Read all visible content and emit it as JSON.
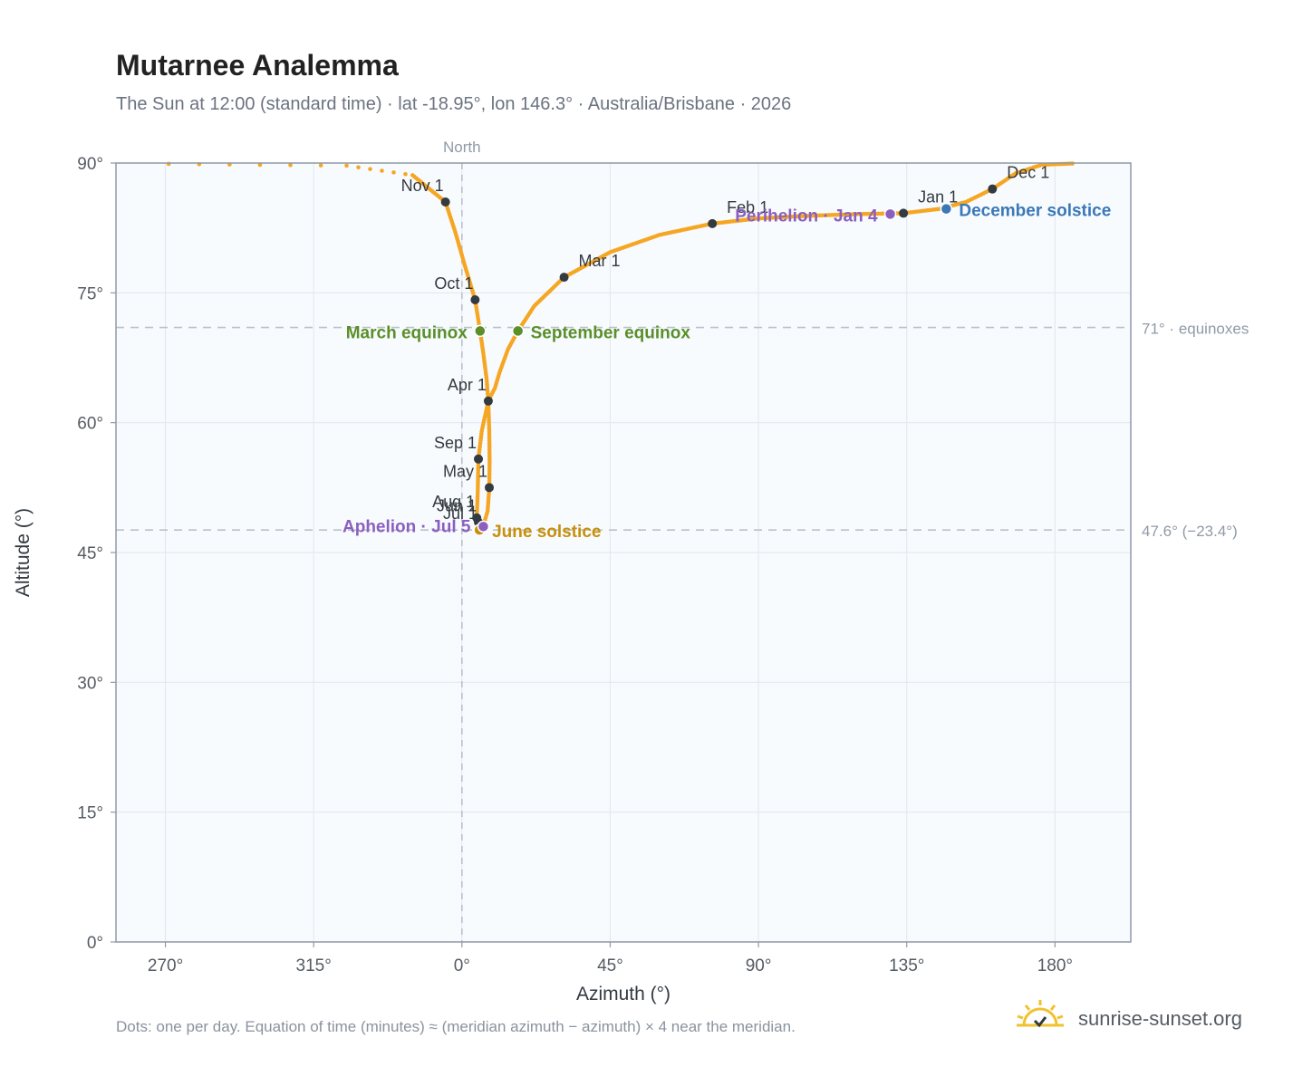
{
  "title": "Mutarnee Analemma",
  "subtitle": "The Sun at 12:00 (standard time) · lat -18.95°, lon 146.3° · Australia/Brisbane · 2026",
  "footnote": "Dots: one per day. Equation of time (minutes) ≈ (meridian azimuth − azimuth) × 4 near the meridian.",
  "brand": {
    "name": "sunrise-sunset.org",
    "icon": "sun-logo-icon"
  },
  "colors": {
    "path": "#f5a623",
    "month_dot": "#333a40",
    "equinox": "#5a8f29",
    "june_solstice": "#c8900a",
    "december_solstice": "#3a78b8",
    "apsis": "#8b5fbf",
    "plot_bg": "#f8fbfe",
    "grid": "#e4e9ef",
    "frame": "#8f9aa8",
    "reference_line": "#b8c2cc",
    "tick_text": "#555b63"
  },
  "chart_data": {
    "type": "scatter",
    "xlabel": "Azimuth (°)",
    "ylabel": "Altitude (°)",
    "x_axis": {
      "ticks": [
        270,
        315,
        0,
        45,
        90,
        135,
        180
      ],
      "tick_labels": [
        "270°",
        "315°",
        "0°",
        "45°",
        "90°",
        "135°",
        "180°"
      ],
      "range": [
        -105,
        203
      ]
    },
    "y_axis": {
      "ticks": [
        0,
        15,
        30,
        45,
        60,
        75,
        90
      ],
      "tick_labels": [
        "0°",
        "15°",
        "30°",
        "45°",
        "60°",
        "75°",
        "90°"
      ],
      "range": [
        0,
        90
      ]
    },
    "grid": true,
    "north_line": {
      "azimuth": 0,
      "label": "North"
    },
    "reference_lines": [
      {
        "altitude": 71,
        "label": "71° · equinoxes"
      },
      {
        "altitude": 47.6,
        "label": "47.6° (−23.4°)"
      }
    ],
    "path_anchors": [
      [
        -89,
        89.9
      ],
      [
        -35,
        89.7
      ],
      [
        -15,
        88.6
      ],
      [
        -5,
        85.5
      ],
      [
        -2,
        82
      ],
      [
        1,
        78
      ],
      [
        4,
        74.2
      ],
      [
        5.5,
        70.6
      ],
      [
        6.5,
        68
      ],
      [
        7.5,
        65
      ],
      [
        8,
        62.5
      ],
      [
        8.3,
        59
      ],
      [
        8.4,
        55.5
      ],
      [
        8.3,
        52.5
      ],
      [
        7.8,
        49.8
      ],
      [
        6.8,
        48.5
      ],
      [
        5.5,
        47.8
      ],
      [
        4.5,
        48.3
      ],
      [
        4.5,
        49
      ],
      [
        4.8,
        52
      ],
      [
        5,
        55.8
      ],
      [
        6,
        59
      ],
      [
        8,
        62.5
      ],
      [
        10,
        64
      ],
      [
        11.5,
        65.9
      ],
      [
        14,
        68.5
      ],
      [
        17,
        70.6
      ],
      [
        22,
        73.5
      ],
      [
        31,
        76.8
      ],
      [
        45,
        79.7
      ],
      [
        60,
        81.7
      ],
      [
        76,
        83
      ],
      [
        90,
        83.6
      ],
      [
        105,
        83.9
      ],
      [
        120,
        84.1
      ],
      [
        134,
        84.2
      ],
      [
        145,
        84.7
      ],
      [
        153,
        85.5
      ],
      [
        161,
        87
      ],
      [
        168,
        88.8
      ],
      [
        176,
        89.8
      ],
      [
        186,
        89.95
      ]
    ],
    "month_markers": [
      {
        "label": "Jan 1",
        "azimuth": 134,
        "altitude": 84.2
      },
      {
        "label": "Feb 1",
        "azimuth": 76,
        "altitude": 83
      },
      {
        "label": "Mar 1",
        "azimuth": 31,
        "altitude": 76.8
      },
      {
        "label": "Apr 1",
        "azimuth": 8,
        "altitude": 62.5
      },
      {
        "label": "May 1",
        "azimuth": 8.3,
        "altitude": 52.5
      },
      {
        "label": "Jun 1",
        "azimuth": 5,
        "altitude": 48.5
      },
      {
        "label": "Jul 1",
        "azimuth": 5.3,
        "altitude": 47.6
      },
      {
        "label": "Aug 1",
        "azimuth": 4.5,
        "altitude": 49
      },
      {
        "label": "Sep 1",
        "azimuth": 5,
        "altitude": 55.8
      },
      {
        "label": "Oct 1",
        "azimuth": 4,
        "altitude": 74.2
      },
      {
        "label": "Nov 1",
        "azimuth": -5,
        "altitude": 85.5
      },
      {
        "label": "Dec 1",
        "azimuth": 161,
        "altitude": 87
      }
    ],
    "events": [
      {
        "label": "March equinox",
        "azimuth": 5.5,
        "altitude": 70.6,
        "role": "equinox"
      },
      {
        "label": "September equinox",
        "azimuth": 17,
        "altitude": 70.6,
        "role": "equinox"
      },
      {
        "label": "June solstice",
        "azimuth": 5.3,
        "altitude": 47.6,
        "role": "june_solstice"
      },
      {
        "label": "December solstice",
        "azimuth": 147,
        "altitude": 84.7,
        "role": "december_solstice"
      },
      {
        "label": "Perihelion · Jan 4",
        "azimuth": 130,
        "altitude": 84.1,
        "role": "apsis"
      },
      {
        "label": "Aphelion · Jul 5",
        "azimuth": 6.5,
        "altitude": 48,
        "role": "apsis"
      }
    ]
  }
}
